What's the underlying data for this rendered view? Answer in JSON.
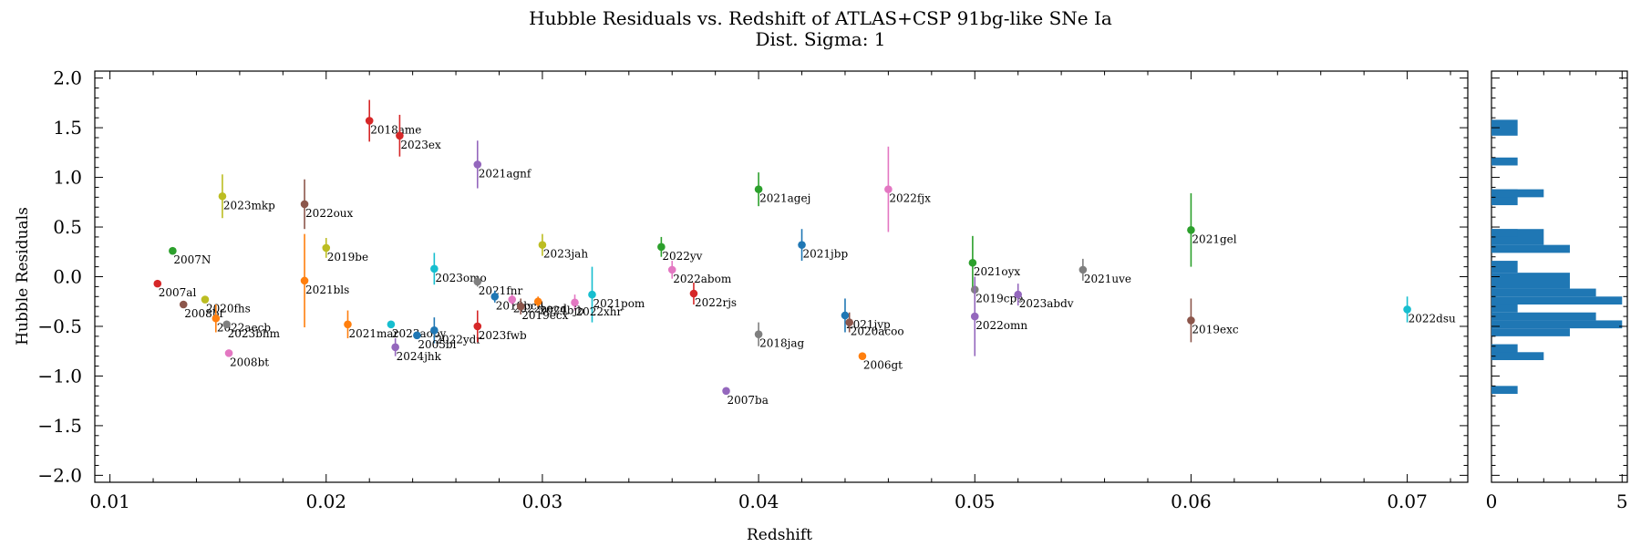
{
  "chart_data": [
    {
      "type": "scatter",
      "title": "Hubble Residuals vs. Redshift of ATLAS+CSP 91bg-like SNe Ia",
      "subtitle": "Dist. Sigma: 1",
      "xlabel": "Redshift",
      "ylabel": "Hubble Residuals",
      "xlim": [
        0.0093,
        0.0728
      ],
      "ylim": [
        -2.07,
        2.07
      ],
      "xticks": [
        "0.01",
        "0.02",
        "0.03",
        "0.04",
        "0.05",
        "0.06",
        "0.07"
      ],
      "yticks": [
        "2.0",
        "1.5",
        "1.0",
        "0.5",
        "0.0",
        "−0.5",
        "−1.0",
        "−1.5",
        "−2.0"
      ],
      "grid": false,
      "points": [
        {
          "label": "2018ame",
          "x": 0.022,
          "y": 1.57,
          "err": 0.21,
          "color": "#d62728"
        },
        {
          "label": "2023ex",
          "x": 0.0234,
          "y": 1.42,
          "err": 0.21,
          "color": "#d62728"
        },
        {
          "label": "2021agnf",
          "x": 0.027,
          "y": 1.13,
          "err": 0.24,
          "color": "#9467bd"
        },
        {
          "label": "2023mkp",
          "x": 0.0152,
          "y": 0.81,
          "err": 0.22,
          "color": "#bcbd22"
        },
        {
          "label": "2022oux",
          "x": 0.019,
          "y": 0.73,
          "err": 0.25,
          "color": "#8c564b"
        },
        {
          "label": "2021agej",
          "x": 0.04,
          "y": 0.88,
          "err": 0.17,
          "color": "#2ca02c"
        },
        {
          "label": "2022fjx",
          "x": 0.046,
          "y": 0.88,
          "err": 0.43,
          "color": "#e377c2"
        },
        {
          "label": "2021gel",
          "x": 0.06,
          "y": 0.47,
          "err": 0.37,
          "color": "#2ca02c"
        },
        {
          "label": "2007N",
          "x": 0.0129,
          "y": 0.26,
          "err": 0.0,
          "color": "#2ca02c"
        },
        {
          "label": "2019be",
          "x": 0.02,
          "y": 0.29,
          "err": 0.1,
          "color": "#bcbd22"
        },
        {
          "label": "2023jah",
          "x": 0.03,
          "y": 0.32,
          "err": 0.11,
          "color": "#bcbd22"
        },
        {
          "label": "2022yv",
          "x": 0.0355,
          "y": 0.3,
          "err": 0.1,
          "color": "#2ca02c"
        },
        {
          "label": "2021jbp",
          "x": 0.042,
          "y": 0.32,
          "err": 0.16,
          "color": "#1f77b4"
        },
        {
          "label": "2021oyx",
          "x": 0.0499,
          "y": 0.14,
          "err": 0.27,
          "color": "#2ca02c"
        },
        {
          "label": "2021uve",
          "x": 0.055,
          "y": 0.07,
          "err": 0.11,
          "color": "#7f7f7f"
        },
        {
          "label": "2023omo",
          "x": 0.025,
          "y": 0.08,
          "err": 0.16,
          "color": "#17becf"
        },
        {
          "label": "2022abom",
          "x": 0.036,
          "y": 0.07,
          "err": 0.09,
          "color": "#e377c2"
        },
        {
          "label": "2021bls",
          "x": 0.019,
          "y": -0.04,
          "err": 0.47,
          "color": "#ff7f0e"
        },
        {
          "label": "2021fnr",
          "x": 0.027,
          "y": -0.05,
          "err": 0.05,
          "color": "#7f7f7f"
        },
        {
          "label": "2007al",
          "x": 0.0122,
          "y": -0.07,
          "err": 0.0,
          "color": "#d62728"
        },
        {
          "label": "2022rjs",
          "x": 0.037,
          "y": -0.17,
          "err": 0.11,
          "color": "#d62728"
        },
        {
          "label": "2019cpe",
          "x": 0.05,
          "y": -0.13,
          "err": 0.1,
          "color": "#7f7f7f"
        },
        {
          "label": "2023abdv",
          "x": 0.052,
          "y": -0.18,
          "err": 0.11,
          "color": "#9467bd"
        },
        {
          "label": "2021pom",
          "x": 0.0323,
          "y": -0.18,
          "err": 0.28,
          "color": "#17becf"
        },
        {
          "label": "2022xhr",
          "x": 0.0315,
          "y": -0.26,
          "err": 0.08,
          "color": "#e377c2"
        },
        {
          "label": "2019bcd",
          "x": 0.0278,
          "y": -0.2,
          "err": 0.06,
          "color": "#1f77b4"
        },
        {
          "label": "2022aecd",
          "x": 0.0286,
          "y": -0.23,
          "err": 0.05,
          "color": "#e377c2"
        },
        {
          "label": "2024bjb",
          "x": 0.0298,
          "y": -0.25,
          "err": 0.05,
          "color": "#ff7f0e"
        },
        {
          "label": "2019ecx",
          "x": 0.029,
          "y": -0.3,
          "err": 0.08,
          "color": "#8c564b"
        },
        {
          "label": "2022dsu",
          "x": 0.07,
          "y": -0.33,
          "err": 0.13,
          "color": "#17becf"
        },
        {
          "label": "2020fhs",
          "x": 0.0144,
          "y": -0.23,
          "err": 0.0,
          "color": "#bcbd22"
        },
        {
          "label": "2008bf",
          "x": 0.0134,
          "y": -0.28,
          "err": 0.0,
          "color": "#8c564b"
        },
        {
          "label": "2021jvp",
          "x": 0.044,
          "y": -0.39,
          "err": 0.17,
          "color": "#1f77b4"
        },
        {
          "label": "2020acoo",
          "x": 0.0442,
          "y": -0.46,
          "err": 0.1,
          "color": "#8c564b"
        },
        {
          "label": "2022omn",
          "x": 0.05,
          "y": -0.4,
          "err": 0.4,
          "color": "#9467bd"
        },
        {
          "label": "2019exc",
          "x": 0.06,
          "y": -0.44,
          "err": 0.22,
          "color": "#8c564b"
        },
        {
          "label": "2022aecb",
          "x": 0.0149,
          "y": -0.42,
          "err": 0.14,
          "color": "#ff7f0e"
        },
        {
          "label": "2023bhm",
          "x": 0.0154,
          "y": -0.48,
          "err": 0.0,
          "color": "#7f7f7f"
        },
        {
          "label": "2021mar",
          "x": 0.021,
          "y": -0.48,
          "err": 0.14,
          "color": "#ff7f0e"
        },
        {
          "label": "2023aoby",
          "x": 0.023,
          "y": -0.48,
          "err": 0.0,
          "color": "#17becf"
        },
        {
          "label": "2022ydr",
          "x": 0.025,
          "y": -0.54,
          "err": 0.13,
          "color": "#1f77b4"
        },
        {
          "label": "2005bl",
          "x": 0.0242,
          "y": -0.59,
          "err": 0.0,
          "color": "#1f77b4"
        },
        {
          "label": "2023fwb",
          "x": 0.027,
          "y": -0.5,
          "err": 0.16,
          "color": "#d62728"
        },
        {
          "label": "2018jag",
          "x": 0.04,
          "y": -0.58,
          "err": 0.12,
          "color": "#7f7f7f"
        },
        {
          "label": "2024jhk",
          "x": 0.0232,
          "y": -0.71,
          "err": 0.09,
          "color": "#9467bd"
        },
        {
          "label": "2008bt",
          "x": 0.0155,
          "y": -0.77,
          "err": 0.0,
          "color": "#e377c2"
        },
        {
          "label": "2006gt",
          "x": 0.0448,
          "y": -0.8,
          "err": 0.0,
          "color": "#ff7f0e"
        },
        {
          "label": "2007ba",
          "x": 0.0385,
          "y": -1.15,
          "err": 0.0,
          "color": "#9467bd"
        }
      ]
    },
    {
      "type": "bar",
      "orientation": "horizontal",
      "color": "#1f77b4",
      "xlim": [
        0,
        5.2
      ],
      "xticks": [
        "0",
        "5"
      ],
      "bins": [
        {
          "y0": -1.18,
          "y1": -1.1,
          "count": 1
        },
        {
          "y0": -0.84,
          "y1": -0.68,
          "count": 1
        },
        {
          "y0": -0.84,
          "y1": -0.76,
          "count": 2
        },
        {
          "y0": -0.6,
          "y1": -0.52,
          "count": 3
        },
        {
          "y0": -0.52,
          "y1": -0.44,
          "count": 5
        },
        {
          "y0": -0.44,
          "y1": -0.36,
          "count": 4
        },
        {
          "y0": -0.36,
          "y1": -0.28,
          "count": 1
        },
        {
          "y0": -0.28,
          "y1": -0.2,
          "count": 5
        },
        {
          "y0": -0.2,
          "y1": -0.12,
          "count": 4
        },
        {
          "y0": -0.12,
          "y1": 0.04,
          "count": 3
        },
        {
          "y0": 0.04,
          "y1": 0.16,
          "count": 1
        },
        {
          "y0": 0.24,
          "y1": 0.32,
          "count": 3
        },
        {
          "y0": 0.32,
          "y1": 0.48,
          "count": 2
        },
        {
          "y0": 0.4,
          "y1": 0.48,
          "count": 1
        },
        {
          "y0": 0.72,
          "y1": 0.88,
          "count": 1
        },
        {
          "y0": 0.8,
          "y1": 0.88,
          "count": 2
        },
        {
          "y0": 1.12,
          "y1": 1.2,
          "count": 1
        },
        {
          "y0": 1.42,
          "y1": 1.58,
          "count": 1
        }
      ]
    }
  ]
}
